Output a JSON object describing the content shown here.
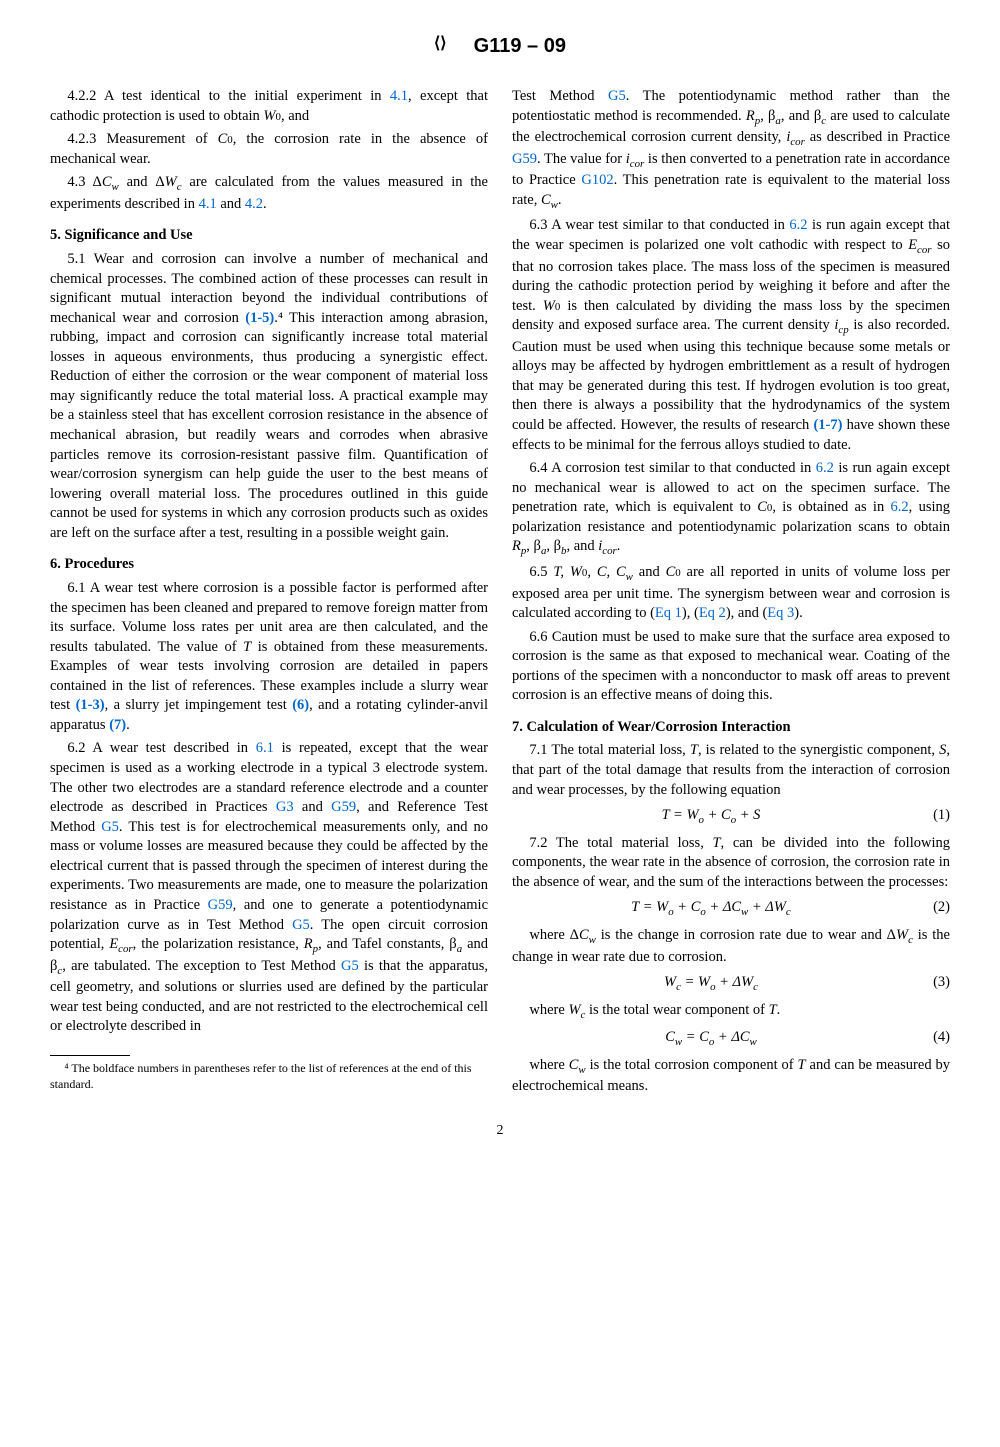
{
  "header": {
    "standard": "G119 – 09"
  },
  "left": {
    "p422": "4.2.2 A test identical to the initial experiment in ",
    "p422_ref": "4.1",
    "p422_end": ", except that cathodic protection is used to obtain ",
    "p422_var": "W₀",
    "p422_and": ", and",
    "p423": "4.2.3 Measurement of ",
    "p423_var": "C₀",
    "p423_end": ", the corrosion rate in the absence of mechanical wear.",
    "p43_a": "4.3 Δ",
    "p43_cw": "C_w",
    "p43_b": " and Δ",
    "p43_wc": "W_c",
    "p43_c": " are calculated from the values measured in the experiments described in ",
    "p43_ref1": "4.1",
    "p43_and": " and ",
    "p43_ref2": "4.2",
    "p43_dot": ".",
    "s5_title": "5. Significance and Use",
    "p51_a": "5.1 Wear and corrosion can involve a number of mechanical and chemical processes. The combined action of these processes can result in significant mutual interaction beyond the individual contributions of mechanical wear and corrosion ",
    "p51_ref": "(1-5)",
    "p51_b": ".⁴ This interaction among abrasion, rubbing, impact and corrosion can significantly increase total material losses in aqueous environments, thus producing a synergistic effect. Reduction of either the corrosion or the wear component of material loss may significantly reduce the total material loss. A practical example may be a stainless steel that has excellent corrosion resistance in the absence of mechanical abrasion, but readily wears and corrodes when abrasive particles remove its corrosion-resistant passive film. Quantification of wear/corrosion synergism can help guide the user to the best means of lowering overall material loss. The procedures outlined in this guide cannot be used for systems in which any corrosion products such as oxides are left on the surface after a test, resulting in a possible weight gain.",
    "s6_title": "6. Procedures",
    "p61_a": "6.1 A wear test where corrosion is a possible factor is performed after the specimen has been cleaned and prepared to remove foreign matter from its surface. Volume loss rates per unit area are then calculated, and the results tabulated. The value of ",
    "p61_T": "T",
    "p61_b": " is obtained from these measurements. Examples of wear tests involving corrosion are detailed in papers contained in the list of references. These examples include a slurry wear test ",
    "p61_ref1": "(1-3)",
    "p61_c": ", a slurry jet impingement test ",
    "p61_ref2": "(6)",
    "p61_d": ", and a rotating cylinder-anvil apparatus ",
    "p61_ref3": "(7)",
    "p61_dot": ".",
    "p62_a": "6.2 A wear test described in ",
    "p62_ref1": "6.1",
    "p62_b": " is repeated, except that the wear specimen is used as a working electrode in a typical 3 electrode system. The other two electrodes are a standard reference electrode and a counter electrode as described in Practices ",
    "p62_ref2": "G3",
    "p62_c": " and ",
    "p62_ref3": "G59",
    "p62_d": ", and Reference Test Method ",
    "p62_ref4": "G5",
    "p62_e": ". This test is for electrochemical measurements only, and no mass or volume losses are measured because they could be affected by the electrical current that is passed through the specimen of interest during the experiments. Two measurements are made, one to measure the polarization resistance as in Practice ",
    "p62_ref5": "G59",
    "p62_f": ", and one to generate a potentiodynamic polarization curve as in Test Method ",
    "p62_ref6": "G5",
    "p62_g": ". The open circuit corrosion potential, ",
    "p62_ecor": "E_cor",
    "p62_h": ", the polarization resistance, ",
    "p62_rp": "R_p",
    "p62_i": ", and Tafel constants, β",
    "p62_a_sub": "_a",
    "p62_j": " and β",
    "p62_c_sub": "_c",
    "p62_k": ", are tabulated. The exception to Test Method ",
    "p62_ref7": "G5",
    "p62_l": " is that the apparatus, cell geometry, and solutions or slurries used are defined by the particular wear test being conducted, and are not restricted to the electrochemical cell or electrolyte described in",
    "footnote": "⁴ The boldface numbers in parentheses refer to the list of references at the end of this standard."
  },
  "right": {
    "p62_cont_a": "Test Method ",
    "p62_cont_ref1": "G5",
    "p62_cont_b": ". The potentiodynamic method rather than the potentiostatic method is recommended. ",
    "p62_cont_rp": "R_p",
    "p62_cont_c": ", β",
    "p62_cont_d": ", and β",
    "p62_cont_e": " are used to calculate the electrochemical corrosion current density, ",
    "p62_cont_icor": "i_cor",
    "p62_cont_f": " as described in Practice ",
    "p62_cont_ref2": "G59",
    "p62_cont_g": ". The value for ",
    "p62_cont_icor2": "i_cor",
    "p62_cont_h": " is then converted to a penetration rate in accordance to Practice ",
    "p62_cont_ref3": "G102",
    "p62_cont_i": ". This penetration rate is equivalent to the material loss rate, ",
    "p62_cont_cw": "C_w",
    "p62_cont_dot": ".",
    "p63_a": "6.3 A wear test similar to that conducted in ",
    "p63_ref": "6.2",
    "p63_b": " is run again except that the wear specimen is polarized one volt cathodic with respect to ",
    "p63_ecor": "E_cor",
    "p63_c": " so that no corrosion takes place. The mass loss of the specimen is measured during the cathodic protection period by weighing it before and after the test. ",
    "p63_w0": "W₀",
    "p63_d": " is then calculated by dividing the mass loss by the specimen density and exposed surface area. The current density ",
    "p63_icp": "i_cp",
    "p63_e": " is also recorded. Caution must be used when using this technique because some metals or alloys may be affected by hydrogen embrittlement as a result of hydrogen that may be generated during this test. If hydrogen evolution is too great, then there is always a possibility that the hydrodynamics of the system could be affected. However, the results of research ",
    "p63_ref2": "(1-7)",
    "p63_f": " have shown these effects to be minimal for the ferrous alloys studied to date.",
    "p64_a": "6.4 A corrosion test similar to that conducted in ",
    "p64_ref": "6.2",
    "p64_b": " is run again except no mechanical wear is allowed to act on the specimen surface. The penetration rate, which is equivalent to ",
    "p64_c0": "C₀",
    "p64_c": ", is obtained as in ",
    "p64_ref2": "6.2",
    "p64_d": ", using polarization resistance and potentiodynamic polarization scans to obtain ",
    "p64_rp": "R_p",
    "p64_e": ", β",
    "p64_f": ", β",
    "p64_g": ", and ",
    "p64_icor": "i_cor",
    "p64_dot": ".",
    "p65_a": "6.5 ",
    "p65_vars": "T, W₀, C, C_w",
    "p65_b": " and ",
    "p65_c0": "C₀",
    "p65_c": " are all reported in units of volume loss per exposed area per unit time. The synergism between wear and corrosion is calculated according to (",
    "p65_eq1": "Eq 1",
    "p65_d": "), (",
    "p65_eq2": "Eq 2",
    "p65_e": "), and (",
    "p65_eq3": "Eq 3",
    "p65_f": ").",
    "p66": "6.6 Caution must be used to make sure that the surface area exposed to corrosion is the same as that exposed to mechanical wear. Coating of the portions of the specimen with a nonconductor to mask off areas to prevent corrosion is an effective means of doing this.",
    "s7_title": "7. Calculation of Wear/Corrosion Interaction",
    "p71_a": "7.1 The total material loss, ",
    "p71_T": "T",
    "p71_b": ", is related to the synergistic component, ",
    "p71_S": "S",
    "p71_c": ", that part of the total damage that results from the interaction of corrosion and wear processes, by the following equation",
    "eq1": "T = W_o + C_o + S",
    "eq1_num": "(1)",
    "p72_a": "7.2  The total material loss, ",
    "p72_T": "T",
    "p72_b": ", can be divided into the following components, the wear rate in the absence of corrosion, the corrosion rate in the absence of wear, and the sum of the interactions between the processes:",
    "eq2": "T = W_o + C_o + ΔC_w + ΔW_c",
    "eq2_num": "(2)",
    "p72_c": "where Δ",
    "p72_cw": "C_w",
    "p72_d": " is the change in corrosion rate due to wear and Δ",
    "p72_wc": "W_c",
    "p72_e": " is the change in wear rate due to corrosion.",
    "eq3": "W_c = W_o + ΔW_c",
    "eq3_num": "(3)",
    "p73_a": "where ",
    "p73_wc": "W_c",
    "p73_b": " is the total wear component of ",
    "p73_T": "T",
    "p73_dot": ".",
    "eq4": "C_w = C_o + ΔC_w",
    "eq4_num": "(4)",
    "p74_a": "where ",
    "p74_cw": "C_w",
    "p74_b": " is the total corrosion component of ",
    "p74_T": "T",
    "p74_c": " and can be measured by electrochemical means."
  },
  "pagenum": "2"
}
